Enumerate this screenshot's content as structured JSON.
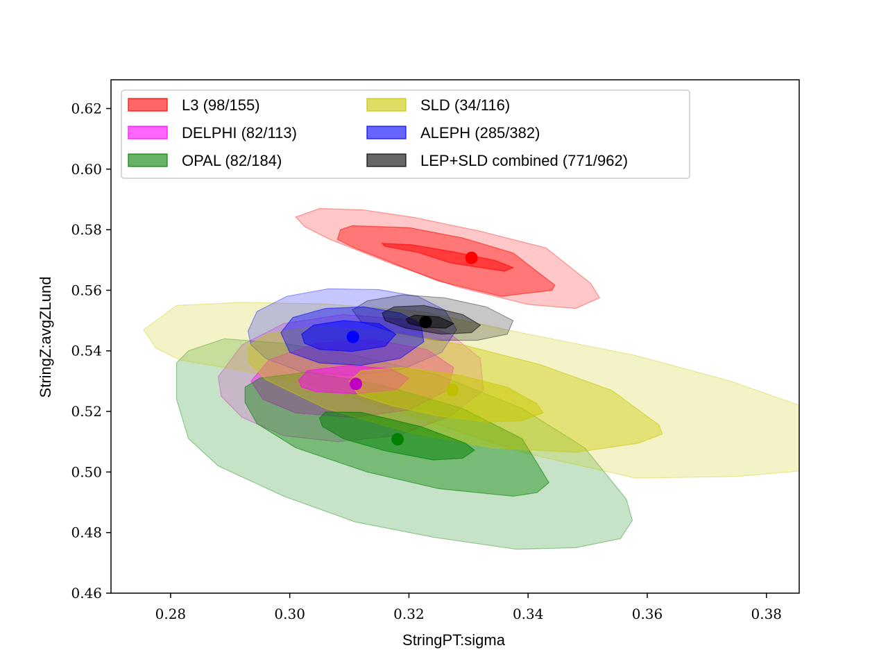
{
  "chart_data": {
    "type": "scatter",
    "xlabel": "StringPT:sigma",
    "ylabel": "StringZ:avgZLund",
    "xlim": [
      0.27,
      0.3855
    ],
    "ylim": [
      0.46,
      0.6295
    ],
    "xticks": [
      "0.28",
      "0.30",
      "0.32",
      "0.34",
      "0.36",
      "0.38"
    ],
    "xtick_values": [
      0.28,
      0.3,
      0.32,
      0.34,
      0.36,
      0.38
    ],
    "yticks": [
      "0.46",
      "0.48",
      "0.50",
      "0.52",
      "0.54",
      "0.56",
      "0.58",
      "0.60",
      "0.62"
    ],
    "ytick_values": [
      0.46,
      0.48,
      0.5,
      0.52,
      0.54,
      0.56,
      0.58,
      0.6,
      0.62
    ],
    "grid": false,
    "legend_placement": "top-left",
    "series": [
      {
        "name": "L3 (98/155)",
        "color": "#ff0000",
        "center": [
          0.3305,
          0.5707
        ],
        "contours": [
          [
            [
              0.3155,
              0.5755
            ],
            [
              0.3205,
              0.575
            ],
            [
              0.3275,
              0.5727
            ],
            [
              0.3345,
              0.5698
            ],
            [
              0.3375,
              0.5675
            ],
            [
              0.336,
              0.5663
            ],
            [
              0.327,
              0.569
            ],
            [
              0.3215,
              0.5725
            ],
            [
              0.316,
              0.5745
            ]
          ],
          [
            [
              0.3085,
              0.58
            ],
            [
              0.3105,
              0.5813
            ],
            [
              0.32,
              0.5807
            ],
            [
              0.329,
              0.5773
            ],
            [
              0.3375,
              0.5723
            ],
            [
              0.3445,
              0.5617
            ],
            [
              0.344,
              0.56
            ],
            [
              0.3355,
              0.558
            ],
            [
              0.325,
              0.563
            ],
            [
              0.316,
              0.57
            ],
            [
              0.3105,
              0.5743
            ],
            [
              0.308,
              0.5768
            ]
          ],
          [
            [
              0.301,
              0.5842
            ],
            [
              0.305,
              0.587
            ],
            [
              0.3125,
              0.5865
            ],
            [
              0.321,
              0.584
            ],
            [
              0.332,
              0.5795
            ],
            [
              0.343,
              0.574
            ],
            [
              0.3505,
              0.5623
            ],
            [
              0.352,
              0.5575
            ],
            [
              0.348,
              0.554
            ],
            [
              0.34,
              0.5553
            ],
            [
              0.328,
              0.5612
            ],
            [
              0.317,
              0.5688
            ],
            [
              0.3065,
              0.577
            ],
            [
              0.3025,
              0.581
            ]
          ]
        ]
      },
      {
        "name": "DELPHI (82/113)",
        "color": "#ff00ff",
        "point_color": "#c000c0",
        "center": [
          0.3111,
          0.5291
        ],
        "contours": [
          [
            [
              0.3015,
              0.5303
            ],
            [
              0.303,
              0.5335
            ],
            [
              0.31,
              0.5352
            ],
            [
              0.317,
              0.534
            ],
            [
              0.32,
              0.531
            ],
            [
              0.318,
              0.5272
            ],
            [
              0.311,
              0.5258
            ],
            [
              0.3045,
              0.5265
            ],
            [
              0.302,
              0.528
            ]
          ],
          [
            [
              0.2935,
              0.53
            ],
            [
              0.2965,
              0.537
            ],
            [
              0.3045,
              0.5425
            ],
            [
              0.314,
              0.5437
            ],
            [
              0.323,
              0.5405
            ],
            [
              0.3275,
              0.5345
            ],
            [
              0.3265,
              0.527
            ],
            [
              0.32,
              0.5205
            ],
            [
              0.3105,
              0.518
            ],
            [
              0.301,
              0.5195
            ],
            [
              0.2955,
              0.524
            ]
          ],
          [
            [
              0.288,
              0.5315
            ],
            [
              0.292,
              0.542
            ],
            [
              0.299,
              0.549
            ],
            [
              0.309,
              0.552
            ],
            [
              0.3185,
              0.5505
            ],
            [
              0.327,
              0.5455
            ],
            [
              0.332,
              0.5375
            ],
            [
              0.3325,
              0.527
            ],
            [
              0.327,
              0.5185
            ],
            [
              0.318,
              0.512
            ],
            [
              0.308,
              0.51
            ],
            [
              0.299,
              0.512
            ],
            [
              0.292,
              0.518
            ],
            [
              0.2885,
              0.525
            ]
          ]
        ]
      },
      {
        "name": "OPAL (82/184)",
        "color": "#008000",
        "center": [
          0.3181,
          0.5108
        ],
        "contours": [
          [
            [
              0.305,
              0.5178
            ],
            [
              0.306,
              0.5198
            ],
            [
              0.312,
              0.5197
            ],
            [
              0.322,
              0.515
            ],
            [
              0.3295,
              0.5095
            ],
            [
              0.331,
              0.5072
            ],
            [
              0.329,
              0.5045
            ],
            [
              0.324,
              0.504
            ],
            [
              0.316,
              0.507
            ],
            [
              0.309,
              0.511
            ],
            [
              0.3055,
              0.515
            ]
          ],
          [
            [
              0.2925,
              0.528
            ],
            [
              0.295,
              0.531
            ],
            [
              0.303,
              0.533
            ],
            [
              0.315,
              0.529
            ],
            [
              0.329,
              0.521
            ],
            [
              0.339,
              0.511
            ],
            [
              0.3435,
              0.4965
            ],
            [
              0.3415,
              0.4932
            ],
            [
              0.3375,
              0.492
            ],
            [
              0.325,
              0.4945
            ],
            [
              0.313,
              0.5
            ],
            [
              0.301,
              0.508
            ],
            [
              0.2945,
              0.516
            ],
            [
              0.2925,
              0.523
            ]
          ],
          [
            [
              0.281,
              0.536
            ],
            [
              0.283,
              0.54
            ],
            [
              0.289,
              0.544
            ],
            [
              0.299,
              0.5425
            ],
            [
              0.311,
              0.5385
            ],
            [
              0.325,
              0.532
            ],
            [
              0.339,
              0.521
            ],
            [
              0.3495,
              0.508
            ],
            [
              0.3565,
              0.491
            ],
            [
              0.3575,
              0.484
            ],
            [
              0.3555,
              0.478
            ],
            [
              0.348,
              0.475
            ],
            [
              0.338,
              0.4745
            ],
            [
              0.324,
              0.4785
            ],
            [
              0.311,
              0.4835
            ],
            [
              0.299,
              0.492
            ],
            [
              0.288,
              0.502
            ],
            [
              0.283,
              0.511
            ],
            [
              0.281,
              0.524
            ]
          ]
        ]
      },
      {
        "name": "SLD (34/116)",
        "color": "#c8c800",
        "point_color": "#bfbf00",
        "center": [
          0.3273,
          0.5271
        ],
        "contours": [
          [
            [
              0.31,
              0.53
            ],
            [
              0.312,
              0.5335
            ],
            [
              0.319,
              0.5345
            ],
            [
              0.3285,
              0.532
            ],
            [
              0.3365,
              0.528
            ],
            [
              0.3415,
              0.5225
            ],
            [
              0.3425,
              0.5195
            ],
            [
              0.339,
              0.517
            ],
            [
              0.333,
              0.5165
            ],
            [
              0.325,
              0.5185
            ],
            [
              0.317,
              0.522
            ],
            [
              0.3115,
              0.5255
            ]
          ],
          [
            [
              0.293,
              0.5415
            ],
            [
              0.296,
              0.5455
            ],
            [
              0.304,
              0.548
            ],
            [
              0.316,
              0.5465
            ],
            [
              0.329,
              0.542
            ],
            [
              0.342,
              0.5355
            ],
            [
              0.354,
              0.527
            ],
            [
              0.362,
              0.5155
            ],
            [
              0.3625,
              0.5125
            ],
            [
              0.3585,
              0.5095
            ],
            [
              0.348,
              0.5065
            ],
            [
              0.334,
              0.508
            ],
            [
              0.32,
              0.513
            ],
            [
              0.306,
              0.521
            ],
            [
              0.296,
              0.5305
            ],
            [
              0.293,
              0.5365
            ]
          ],
          [
            [
              0.2755,
              0.547
            ],
            [
              0.2775,
              0.541
            ],
            [
              0.2815,
              0.537
            ],
            [
              0.292,
              0.5335
            ],
            [
              0.306,
              0.5275
            ],
            [
              0.322,
              0.5175
            ],
            [
              0.34,
              0.506
            ],
            [
              0.358,
              0.498
            ],
            [
              0.375,
              0.4985
            ],
            [
              0.3895,
              0.501
            ],
            [
              0.3975,
              0.503
            ],
            [
              0.4,
              0.5065
            ],
            [
              0.396,
              0.5135
            ],
            [
              0.387,
              0.521
            ],
            [
              0.374,
              0.53
            ],
            [
              0.358,
              0.5385
            ],
            [
              0.34,
              0.5455
            ],
            [
              0.322,
              0.553
            ],
            [
              0.306,
              0.5555
            ],
            [
              0.292,
              0.556
            ],
            [
              0.281,
              0.555
            ]
          ]
        ]
      },
      {
        "name": "ALEPH (285/382)",
        "color": "#0000ff",
        "center": [
          0.3106,
          0.5446
        ],
        "contours": [
          [
            [
              0.302,
              0.5455
            ],
            [
              0.304,
              0.5485
            ],
            [
              0.309,
              0.55
            ],
            [
              0.315,
              0.549
            ],
            [
              0.3178,
              0.5455
            ],
            [
              0.316,
              0.5415
            ],
            [
              0.3105,
              0.5398
            ],
            [
              0.305,
              0.5405
            ],
            [
              0.3025,
              0.5425
            ]
          ],
          [
            [
              0.2985,
              0.546
            ],
            [
              0.3005,
              0.551
            ],
            [
              0.306,
              0.554
            ],
            [
              0.3125,
              0.5545
            ],
            [
              0.3185,
              0.5525
            ],
            [
              0.322,
              0.549
            ],
            [
              0.3225,
              0.543
            ],
            [
              0.3185,
              0.5375
            ],
            [
              0.312,
              0.5352
            ],
            [
              0.305,
              0.536
            ],
            [
              0.3,
              0.5395
            ]
          ],
          [
            [
              0.293,
              0.5465
            ],
            [
              0.2945,
              0.553
            ],
            [
              0.2995,
              0.558
            ],
            [
              0.3065,
              0.5605
            ],
            [
              0.315,
              0.5602
            ],
            [
              0.3215,
              0.558
            ],
            [
              0.326,
              0.5535
            ],
            [
              0.328,
              0.547
            ],
            [
              0.3255,
              0.5395
            ],
            [
              0.319,
              0.534
            ],
            [
              0.3105,
              0.5318
            ],
            [
              0.302,
              0.533
            ],
            [
              0.296,
              0.5375
            ],
            [
              0.2935,
              0.542
            ]
          ]
        ]
      },
      {
        "name": "LEP+SLD combined (771/962)",
        "color": "#000000",
        "center": [
          0.3228,
          0.5495
        ],
        "contours": [
          [
            [
              0.3195,
              0.5505
            ],
            [
              0.321,
              0.5518
            ],
            [
              0.325,
              0.5512
            ],
            [
              0.3275,
              0.549
            ],
            [
              0.3262,
              0.5475
            ],
            [
              0.3225,
              0.5478
            ],
            [
              0.32,
              0.549
            ]
          ],
          [
            [
              0.3155,
              0.5525
            ],
            [
              0.3175,
              0.5545
            ],
            [
              0.3225,
              0.555
            ],
            [
              0.329,
              0.552
            ],
            [
              0.332,
              0.5485
            ],
            [
              0.3305,
              0.546
            ],
            [
              0.3255,
              0.5455
            ],
            [
              0.3195,
              0.5475
            ],
            [
              0.316,
              0.55
            ]
          ],
          [
            [
              0.3105,
              0.5535
            ],
            [
              0.313,
              0.5565
            ],
            [
              0.319,
              0.5585
            ],
            [
              0.326,
              0.5575
            ],
            [
              0.333,
              0.5545
            ],
            [
              0.3375,
              0.55
            ],
            [
              0.3365,
              0.5455
            ],
            [
              0.3315,
              0.5435
            ],
            [
              0.3245,
              0.5435
            ],
            [
              0.3175,
              0.546
            ],
            [
              0.312,
              0.5495
            ]
          ]
        ]
      }
    ]
  },
  "legend": {
    "items": [
      {
        "label": "L3 (98/155)",
        "color": "#ff0000"
      },
      {
        "label": "DELPHI (82/113)",
        "color": "#ff00ff"
      },
      {
        "label": "OPAL (82/184)",
        "color": "#008000"
      },
      {
        "label": "SLD (34/116)",
        "color": "#c8c800"
      },
      {
        "label": "ALEPH (285/382)",
        "color": "#0000ff"
      },
      {
        "label": "LEP+SLD combined (771/962)",
        "color": "#000000"
      }
    ]
  }
}
